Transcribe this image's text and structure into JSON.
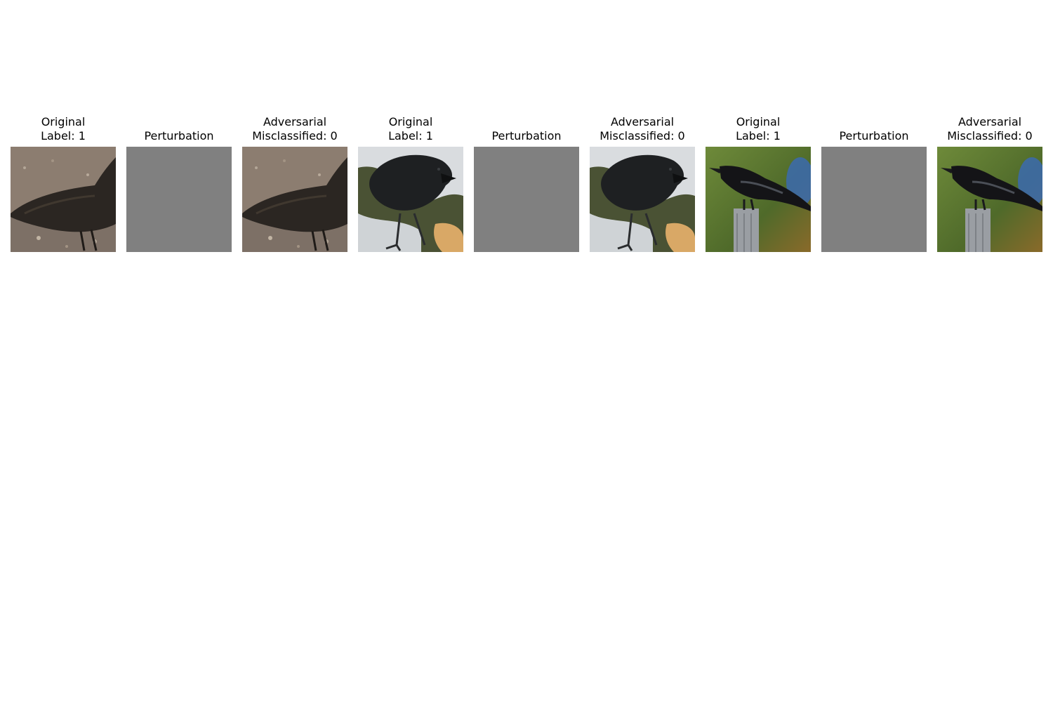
{
  "panels": [
    {
      "title": [
        "Original",
        "Label: 1"
      ],
      "kind": "image",
      "scene": "raven-gravel"
    },
    {
      "title": [
        "Perturbation"
      ],
      "kind": "perturbation"
    },
    {
      "title": [
        "Adversarial",
        "Misclassified: 0"
      ],
      "kind": "image",
      "scene": "raven-gravel"
    },
    {
      "title": [
        "Original",
        "Label: 1"
      ],
      "kind": "image",
      "scene": "crow-snow"
    },
    {
      "title": [
        "Perturbation"
      ],
      "kind": "perturbation"
    },
    {
      "title": [
        "Adversarial",
        "Misclassified: 0"
      ],
      "kind": "image",
      "scene": "crow-snow"
    },
    {
      "title": [
        "Original",
        "Label: 1"
      ],
      "kind": "image",
      "scene": "crow-post"
    },
    {
      "title": [
        "Perturbation"
      ],
      "kind": "perturbation"
    },
    {
      "title": [
        "Adversarial",
        "Misclassified: 0"
      ],
      "kind": "image",
      "scene": "crow-post"
    }
  ],
  "colors": {
    "perturbation": "#808080",
    "background": "#ffffff"
  }
}
